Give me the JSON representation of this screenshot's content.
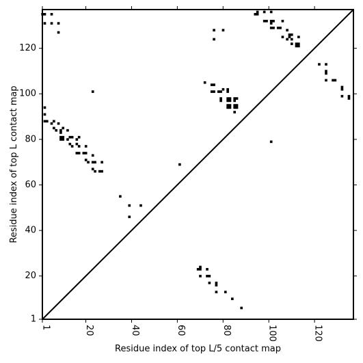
{
  "chart_data": {
    "type": "scatter",
    "title": "",
    "xlabel": "Residue index of top L/5 contact map",
    "ylabel": "Residue index of top L contact map",
    "xlim": [
      1,
      137
    ],
    "ylim": [
      1,
      137
    ],
    "xticks": [
      1,
      20,
      40,
      60,
      80,
      100,
      120
    ],
    "yticks": [
      1,
      20,
      40,
      60,
      80,
      100,
      120
    ],
    "grid": false,
    "diagonal": true,
    "series": [
      {
        "marker": "square",
        "color": "#000000",
        "points": [
          [
            1,
            135
          ],
          [
            2,
            135
          ],
          [
            2,
            131
          ],
          [
            5,
            135
          ],
          [
            5,
            131
          ],
          [
            8,
            131
          ],
          [
            8,
            127
          ],
          [
            2,
            94
          ],
          [
            2,
            91
          ],
          [
            2,
            88
          ],
          [
            3,
            88
          ],
          [
            5,
            87
          ],
          [
            6,
            88
          ],
          [
            6,
            85
          ],
          [
            7,
            84
          ],
          [
            9,
            84
          ],
          [
            10,
            85
          ],
          [
            9,
            81
          ],
          [
            10,
            81
          ],
          [
            9,
            80
          ],
          [
            10,
            80
          ],
          [
            8,
            87
          ],
          [
            9,
            83
          ],
          [
            12,
            80
          ],
          [
            13,
            81
          ],
          [
            14,
            81
          ],
          [
            12,
            84
          ],
          [
            13,
            78
          ],
          [
            14,
            77
          ],
          [
            16,
            80
          ],
          [
            17,
            81
          ],
          [
            16,
            78
          ],
          [
            17,
            77
          ],
          [
            16,
            74
          ],
          [
            17,
            74
          ],
          [
            19,
            74
          ],
          [
            20,
            74
          ],
          [
            20,
            77
          ],
          [
            20,
            71
          ],
          [
            21,
            70
          ],
          [
            23,
            73
          ],
          [
            23,
            70
          ],
          [
            24,
            70
          ],
          [
            23,
            67
          ],
          [
            24,
            66
          ],
          [
            26,
            66
          ],
          [
            27,
            66
          ],
          [
            27,
            70
          ],
          [
            23,
            101
          ],
          [
            35,
            55
          ],
          [
            39,
            51
          ],
          [
            39,
            46
          ],
          [
            44,
            51
          ],
          [
            61,
            69
          ],
          [
            72,
            105
          ],
          [
            75,
            104
          ],
          [
            76,
            104
          ],
          [
            75,
            101
          ],
          [
            76,
            101
          ],
          [
            78,
            101
          ],
          [
            79,
            101
          ],
          [
            79,
            98
          ],
          [
            79,
            97
          ],
          [
            80,
            102
          ],
          [
            82,
            102
          ],
          [
            82,
            101
          ],
          [
            82,
            98
          ],
          [
            83,
            98
          ],
          [
            82,
            97
          ],
          [
            83,
            97
          ],
          [
            82,
            95
          ],
          [
            83,
            95
          ],
          [
            82,
            94
          ],
          [
            83,
            94
          ],
          [
            85,
            98
          ],
          [
            86,
            98
          ],
          [
            85,
            97
          ],
          [
            85,
            95
          ],
          [
            86,
            95
          ],
          [
            85,
            94
          ],
          [
            86,
            94
          ],
          [
            85,
            92
          ],
          [
            76,
            128
          ],
          [
            80,
            128
          ],
          [
            76,
            124
          ],
          [
            94,
            135
          ],
          [
            95,
            135
          ],
          [
            95,
            136
          ],
          [
            98,
            136
          ],
          [
            98,
            132
          ],
          [
            99,
            132
          ],
          [
            101,
            136
          ],
          [
            101,
            132
          ],
          [
            101,
            131
          ],
          [
            102,
            132
          ],
          [
            101,
            129
          ],
          [
            102,
            129
          ],
          [
            104,
            129
          ],
          [
            105,
            129
          ],
          [
            106,
            132
          ],
          [
            108,
            128
          ],
          [
            109,
            126
          ],
          [
            110,
            126
          ],
          [
            109,
            125
          ],
          [
            110,
            124
          ],
          [
            108,
            124
          ],
          [
            112,
            122
          ],
          [
            113,
            122
          ],
          [
            113,
            121
          ],
          [
            112,
            121
          ],
          [
            106,
            125
          ],
          [
            110,
            122
          ],
          [
            113,
            125
          ],
          [
            122,
            113
          ],
          [
            125,
            113
          ],
          [
            125,
            110
          ],
          [
            125,
            109
          ],
          [
            125,
            106
          ],
          [
            128,
            106
          ],
          [
            129,
            106
          ],
          [
            132,
            103
          ],
          [
            132,
            102
          ],
          [
            132,
            99
          ],
          [
            135,
            99
          ],
          [
            135,
            98
          ],
          [
            101,
            79
          ],
          [
            69,
            23
          ],
          [
            70,
            23
          ],
          [
            70,
            24
          ],
          [
            73,
            23
          ],
          [
            70,
            20
          ],
          [
            73,
            20
          ],
          [
            74,
            20
          ],
          [
            74,
            17
          ],
          [
            77,
            17
          ],
          [
            77,
            16
          ],
          [
            77,
            13
          ],
          [
            81,
            13
          ],
          [
            84,
            10
          ],
          [
            88,
            6
          ]
        ]
      }
    ]
  }
}
